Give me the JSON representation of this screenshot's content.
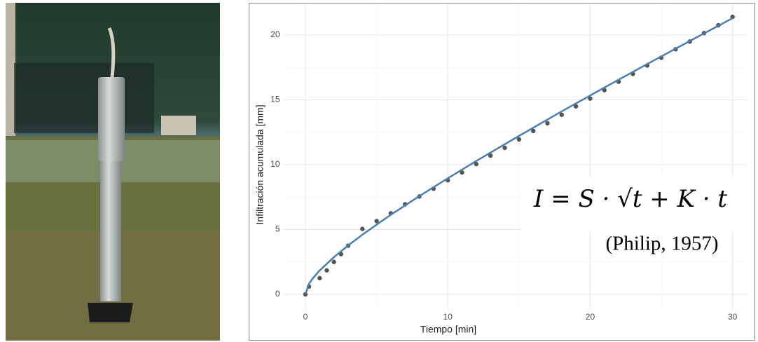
{
  "chart_data": {
    "type": "scatter",
    "x_label": "Tiempo [min]",
    "y_label": "Infiltración acumulada [mm]",
    "equation": "I = S · √t + K · t",
    "citation": "(Philip, 1957)",
    "xlim": [
      -1.5,
      31
    ],
    "ylim": [
      -1.07,
      22.4
    ],
    "xticks": [
      0,
      10,
      20,
      30
    ],
    "yticks": [
      0,
      5,
      10,
      15,
      20
    ],
    "minor_xticks": [
      5,
      15,
      25
    ],
    "minor_yticks": [
      2.5,
      7.5,
      12.5,
      17.5
    ],
    "grid": true,
    "series": [
      {
        "type": "scatter",
        "color": "#555555",
        "x": [
          0,
          0.25,
          1,
          1.5,
          2,
          2.5,
          3,
          4,
          5,
          6,
          7,
          8,
          9,
          10,
          11,
          12,
          13,
          14,
          15,
          16,
          17,
          18,
          19,
          20,
          21,
          22,
          23,
          24,
          25,
          26,
          27,
          28,
          29,
          30
        ],
        "values": [
          0,
          0.6,
          1.25,
          1.85,
          2.5,
          3.1,
          3.75,
          5.05,
          5.65,
          6.25,
          6.95,
          7.55,
          8.15,
          8.8,
          9.4,
          10.05,
          10.7,
          11.3,
          11.95,
          12.6,
          13.2,
          13.85,
          14.5,
          15.1,
          15.75,
          16.4,
          17.0,
          17.65,
          18.25,
          18.9,
          19.5,
          20.15,
          20.75,
          21.4
        ]
      },
      {
        "type": "line",
        "color": "#4a7fb0",
        "x": [
          0,
          0.25,
          0.5,
          1,
          2,
          3,
          4,
          6,
          8,
          10,
          12,
          15,
          18,
          21,
          24,
          27,
          30
        ],
        "values": [
          0,
          0.81,
          1.21,
          1.84,
          2.87,
          3.77,
          4.6,
          6.14,
          7.58,
          8.95,
          10.29,
          12.22,
          14.11,
          15.95,
          17.76,
          19.54,
          21.3
        ]
      }
    ]
  }
}
